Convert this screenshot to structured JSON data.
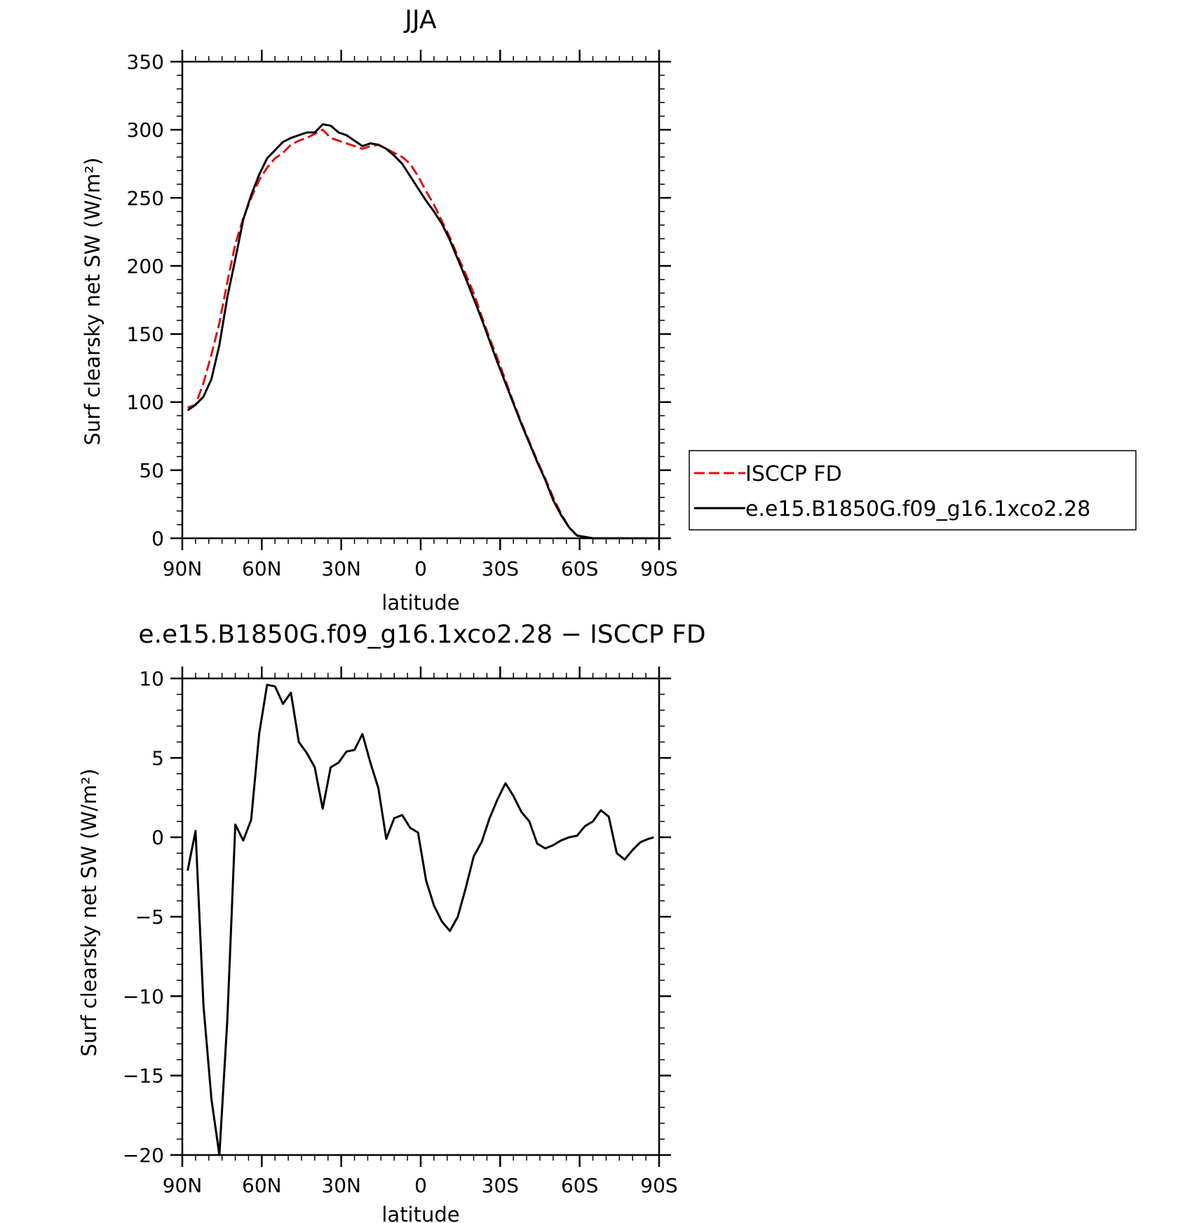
{
  "chart_data": [
    {
      "type": "line",
      "title": "JJA",
      "xlabel": "latitude",
      "ylabel": "Surf clearsky net SW (W/m²)",
      "xlim": [
        90,
        -90
      ],
      "ylim": [
        0,
        350
      ],
      "x_ticks": [
        {
          "value": 90,
          "label": "90N"
        },
        {
          "value": 60,
          "label": "60N"
        },
        {
          "value": 30,
          "label": "30N"
        },
        {
          "value": 0,
          "label": "0"
        },
        {
          "value": -30,
          "label": "30S"
        },
        {
          "value": -60,
          "label": "60S"
        },
        {
          "value": -90,
          "label": "90S"
        }
      ],
      "y_ticks": [
        {
          "value": 0,
          "label": "0"
        },
        {
          "value": 50,
          "label": "50"
        },
        {
          "value": 100,
          "label": "100"
        },
        {
          "value": 150,
          "label": "150"
        },
        {
          "value": 200,
          "label": "200"
        },
        {
          "value": 250,
          "label": "250"
        },
        {
          "value": 300,
          "label": "300"
        },
        {
          "value": 350,
          "label": "350"
        }
      ],
      "grid": false,
      "legend_placement": "right",
      "series": [
        {
          "name": "ISCCP FD",
          "color": "#e01010",
          "dash": "dashed",
          "x": [
            88,
            85,
            82,
            79,
            76,
            73,
            70,
            67,
            64,
            61,
            58,
            55,
            52,
            49,
            46,
            43,
            40,
            37,
            34,
            31,
            28,
            25,
            22,
            19,
            16,
            13,
            10,
            7,
            4,
            1,
            -2,
            -5,
            -8,
            -11,
            -14,
            -17,
            -20,
            -23,
            -26,
            -29,
            -32,
            -35,
            -38,
            -41,
            -44,
            -47,
            -50,
            -53,
            -56,
            -59,
            -62,
            -65,
            -68,
            -71,
            -74,
            -77,
            -80,
            -83,
            -86,
            -88
          ],
          "y": [
            96,
            98,
            114,
            135,
            158,
            188,
            216,
            235,
            250,
            263,
            272,
            279,
            283,
            289,
            292,
            294,
            297,
            300,
            294,
            292,
            290,
            288,
            286,
            288,
            289,
            286,
            283,
            280,
            275,
            266,
            255,
            245,
            233,
            221,
            207,
            194,
            180,
            163,
            147,
            132,
            116,
            100,
            85,
            71,
            57,
            44,
            30,
            18,
            8,
            2,
            1,
            0,
            0,
            0,
            0,
            0,
            0,
            0,
            0,
            0
          ]
        },
        {
          "name": "e.e15.B1850G.f09_g16.1xco2.28",
          "color": "#000000",
          "dash": "solid",
          "x": [
            88,
            85,
            82,
            79,
            76,
            73,
            70,
            67,
            64,
            61,
            58,
            55,
            52,
            49,
            46,
            43,
            40,
            37,
            34,
            31,
            28,
            25,
            22,
            19,
            16,
            13,
            10,
            7,
            4,
            1,
            -2,
            -5,
            -8,
            -11,
            -14,
            -17,
            -20,
            -23,
            -26,
            -29,
            -32,
            -35,
            -38,
            -41,
            -44,
            -47,
            -50,
            -53,
            -56,
            -59,
            -62,
            -65,
            -68,
            -71,
            -74,
            -77,
            -80,
            -83,
            -86,
            -88
          ],
          "y": [
            94,
            98,
            104,
            117,
            142,
            177,
            205,
            234,
            252,
            267,
            279,
            285,
            291,
            294,
            296,
            298,
            298,
            304,
            303,
            298,
            296,
            292,
            288,
            290,
            289,
            286,
            281,
            275,
            266,
            257,
            248,
            240,
            231,
            219,
            205,
            191,
            176,
            161,
            145,
            129,
            114,
            99,
            84,
            70,
            56,
            43,
            28,
            17,
            8,
            2,
            1,
            0,
            0,
            0,
            0,
            0,
            0,
            0,
            0,
            0
          ]
        }
      ]
    },
    {
      "type": "line",
      "title": "e.e15.B1850G.f09_g16.1xco2.28 − ISCCP FD",
      "xlabel": "latitude",
      "ylabel": "Surf clearsky net SW (W/m²)",
      "xlim": [
        90,
        -90
      ],
      "ylim": [
        -20,
        10
      ],
      "x_ticks": [
        {
          "value": 90,
          "label": "90N"
        },
        {
          "value": 60,
          "label": "60N"
        },
        {
          "value": 30,
          "label": "30N"
        },
        {
          "value": 0,
          "label": "0"
        },
        {
          "value": -30,
          "label": "30S"
        },
        {
          "value": -60,
          "label": "60S"
        },
        {
          "value": -90,
          "label": "90S"
        }
      ],
      "y_ticks": [
        {
          "value": 10,
          "label": "10"
        },
        {
          "value": 5,
          "label": "5"
        },
        {
          "value": 0,
          "label": "0"
        },
        {
          "value": -5,
          "label": "−5"
        },
        {
          "value": -10,
          "label": "−10"
        },
        {
          "value": -15,
          "label": "−15"
        },
        {
          "value": -20,
          "label": "−20"
        }
      ],
      "grid": false,
      "series": [
        {
          "color": "#000000",
          "dash": "solid",
          "x": [
            88,
            85,
            82,
            79,
            76,
            73,
            70,
            67,
            64,
            61,
            58,
            55,
            52,
            49,
            46,
            43,
            40,
            37,
            34,
            31,
            28,
            25,
            22,
            19,
            16,
            13,
            10,
            7,
            4,
            1,
            -2,
            -5,
            -8,
            -11,
            -14,
            -17,
            -20,
            -23,
            -26,
            -29,
            -32,
            -35,
            -38,
            -41,
            -44,
            -47,
            -50,
            -53,
            -56,
            -59,
            -62,
            -65,
            -68,
            -71,
            -74,
            -77,
            -80,
            -83,
            -86,
            -88
          ],
          "y": [
            -2.1,
            0.4,
            -10.6,
            -16.5,
            -20.0,
            -11.5,
            0.8,
            -0.2,
            1.1,
            6.5,
            9.6,
            9.5,
            8.4,
            9.1,
            6.0,
            5.3,
            4.4,
            1.8,
            4.4,
            4.7,
            5.4,
            5.5,
            6.5,
            4.7,
            3.1,
            -0.1,
            1.2,
            1.4,
            0.6,
            0.3,
            -2.7,
            -4.3,
            -5.3,
            -5.9,
            -5.0,
            -3.2,
            -1.2,
            -0.3,
            1.2,
            2.4,
            3.4,
            2.6,
            1.6,
            1.0,
            -0.4,
            -0.7,
            -0.5,
            -0.2,
            0.0,
            0.1,
            0.7,
            1.0,
            1.7,
            1.3,
            -1.0,
            -1.4,
            -0.8,
            -0.3,
            -0.1,
            0.0
          ]
        }
      ]
    }
  ]
}
